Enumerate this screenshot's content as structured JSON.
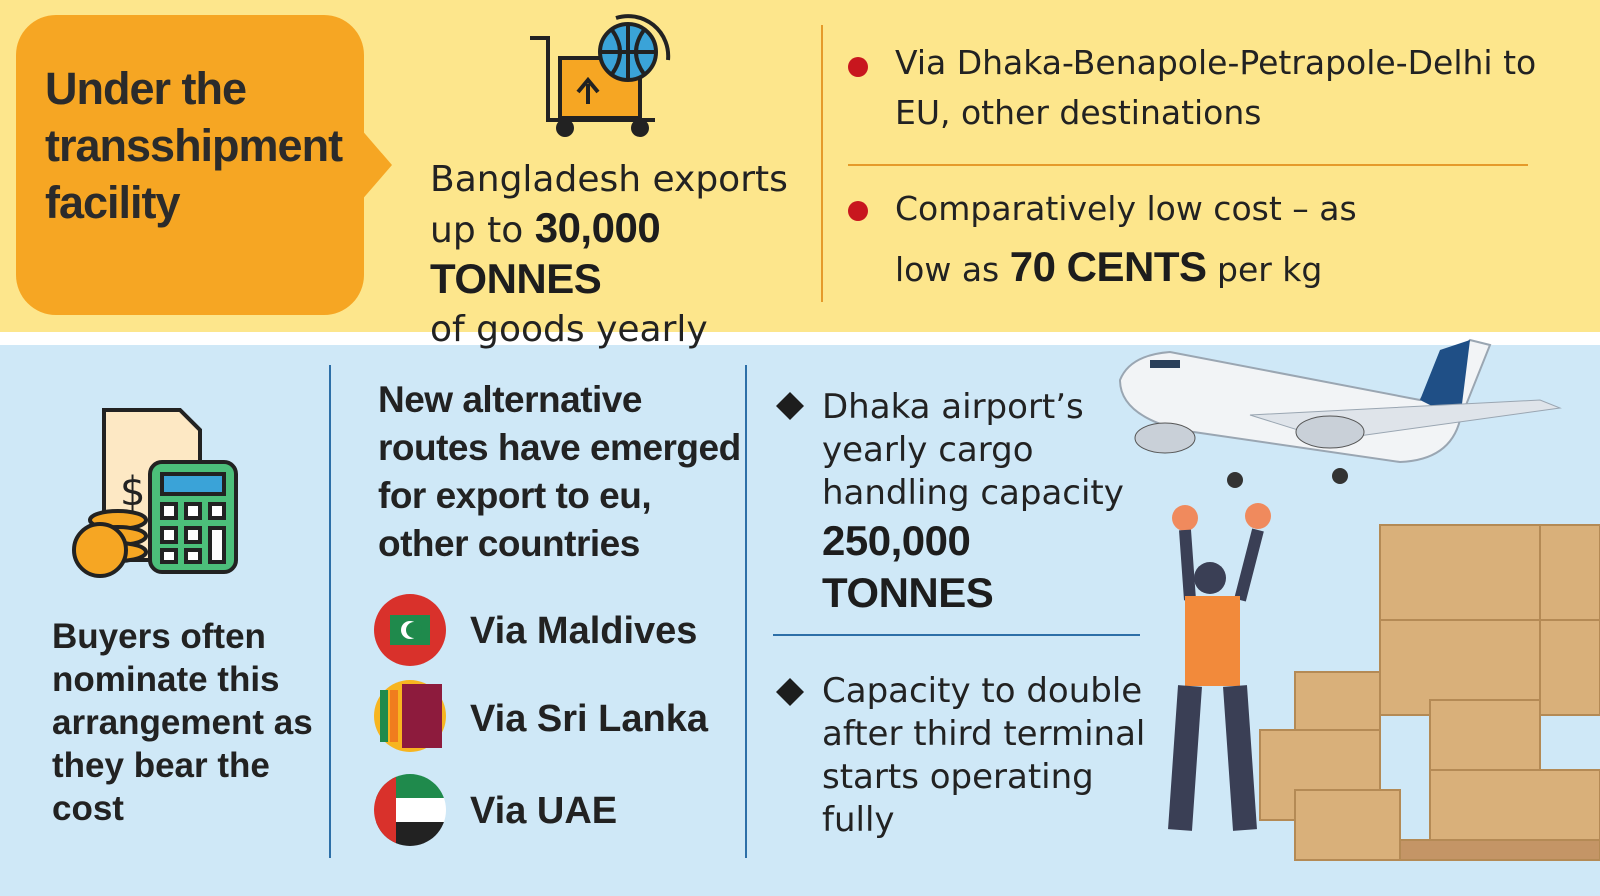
{
  "header": {
    "title": "Under the transshipment facility"
  },
  "exports": {
    "text_before": "Bangladesh exports",
    "text_middle": "up to",
    "highlight": "30,000 TONNES",
    "text_after": "of goods yearly"
  },
  "route_points": [
    {
      "text": "Via Dhaka-Benapole-Petrapole-Delhi to EU, other destinations"
    },
    {
      "text_before": "Comparatively low cost – as low as",
      "highlight": "70 CENTS",
      "text_after": "per kg"
    }
  ],
  "buyers": {
    "text": "Buyers often nominate this arrangement as they bear the cost"
  },
  "alternatives": {
    "heading": "New alternative routes have emerged for export to eu, other countries",
    "routes": [
      "Via Maldives",
      "Via Sri Lanka",
      "Via UAE"
    ]
  },
  "airport": {
    "points": [
      {
        "text": "Dhaka airport’s yearly cargo handling capacity",
        "highlight": "250,000 TONNES"
      },
      {
        "text": "Capacity to double after third terminal starts operating fully"
      }
    ]
  }
}
